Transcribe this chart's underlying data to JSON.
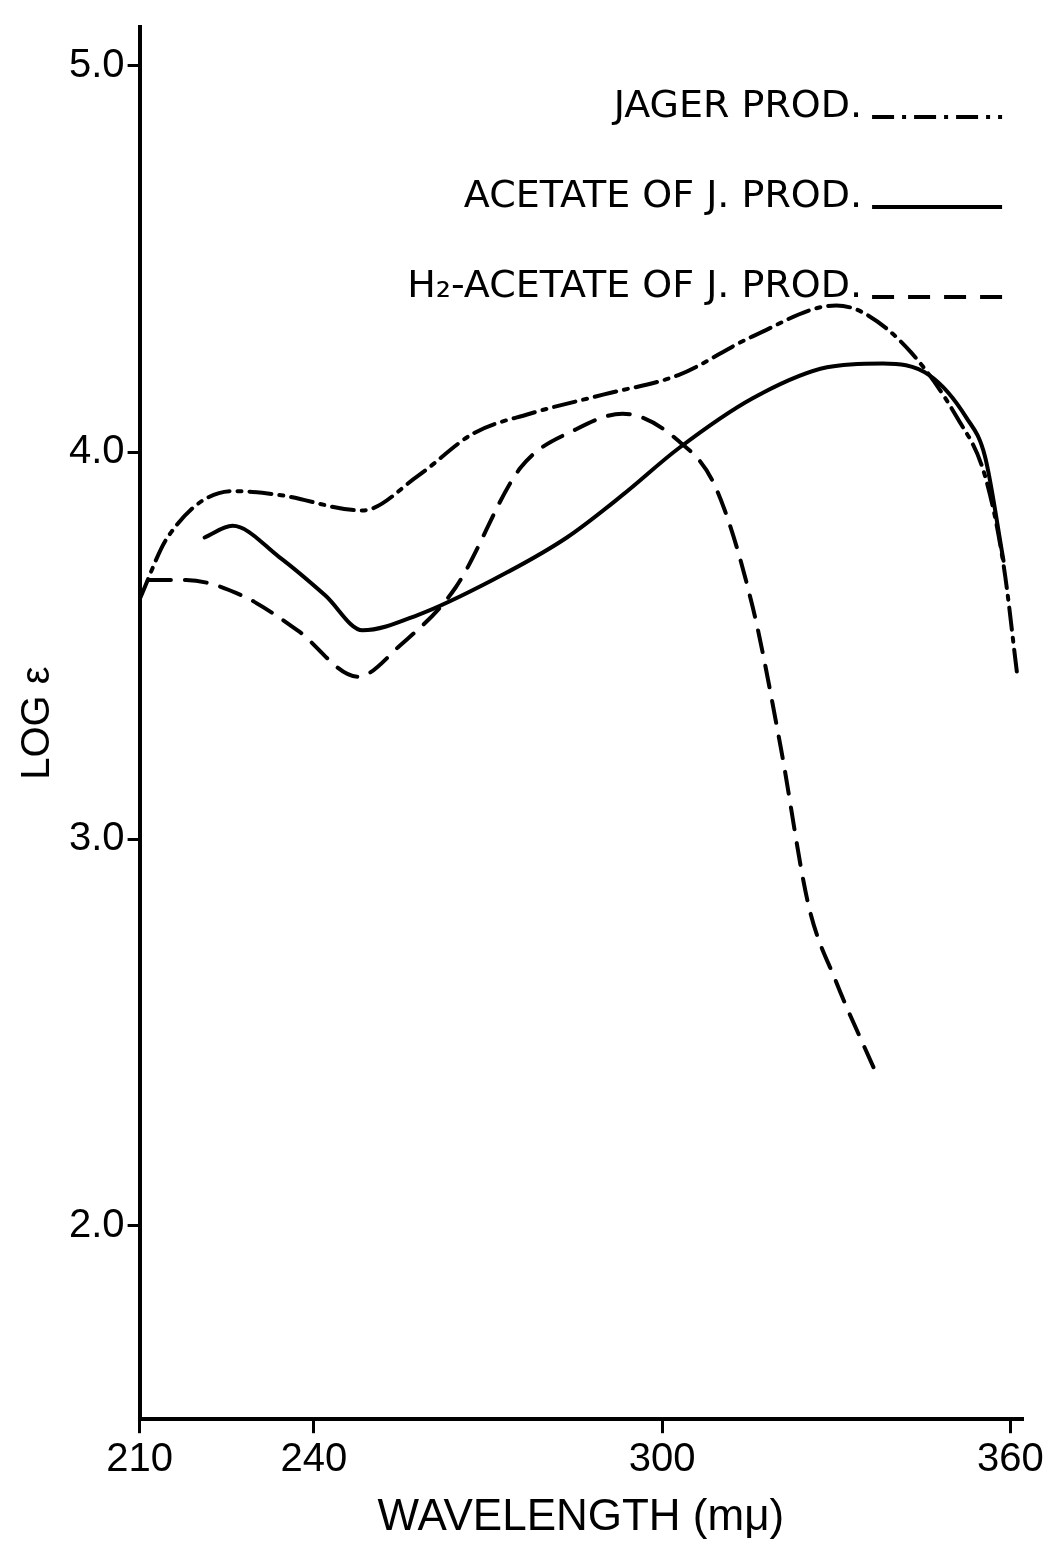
{
  "chart_data": {
    "type": "line",
    "xlabel": "WAVELENGTH (mμ)",
    "ylabel": "LOG ε",
    "xlim": [
      210,
      362
    ],
    "xticks": [
      210,
      240,
      300,
      360
    ],
    "ylim": [
      1.5,
      5.1
    ],
    "yticks": [
      {
        "value": 2,
        "label": "2.0"
      },
      {
        "value": 3,
        "label": "3.0"
      },
      {
        "value": 4,
        "label": "4.0"
      },
      {
        "value": 5,
        "label": "5.0"
      }
    ],
    "grid": false,
    "legend": "top right",
    "marker": "none",
    "series": [
      {
        "name": "JAGER PROD.",
        "color": "#000000",
        "line_style": "dashdot",
        "x": [
          210,
          214.8,
          226,
          234,
          248.4,
          258,
          267.6,
          277.2,
          290,
          302.8,
          315.6,
          330,
          334.8,
          342.8,
          350.8,
          355.6,
          358.8,
          361.2
        ],
        "values": [
          3.62,
          3.78,
          3.9,
          3.89,
          3.85,
          3.94,
          4.05,
          4.1,
          4.15,
          4.2,
          4.3,
          4.38,
          4.36,
          4.26,
          4.09,
          3.94,
          3.71,
          3.42
        ]
      },
      {
        "name": "ACETATE OF J. PROD.",
        "color": "#000000",
        "line_style": "solid",
        "x": [
          221.2,
          226,
          234,
          242,
          248.4,
          258,
          270.8,
          283.6,
          293.2,
          302.8,
          315.6,
          328.4,
          338,
          346,
          352.4,
          355.6,
          358.8
        ],
        "values": [
          3.78,
          3.81,
          3.73,
          3.63,
          3.54,
          3.58,
          3.67,
          3.78,
          3.89,
          4.01,
          4.14,
          4.22,
          4.23,
          4.2,
          4.09,
          3.99,
          3.72
        ]
      },
      {
        "name": "H₂-ACETATE OF J. PROD.",
        "color": "#000000",
        "line_style": "dashed",
        "x": [
          211.6,
          218,
          227.6,
          237.2,
          247.6,
          254.8,
          264.4,
          275.6,
          285.2,
          293.2,
          302.8,
          309.2,
          315.6,
          320.4,
          325.2,
          330,
          336.4
        ],
        "values": [
          3.67,
          3.67,
          3.63,
          3.54,
          3.42,
          3.5,
          3.65,
          3.96,
          4.06,
          4.1,
          4.03,
          3.91,
          3.6,
          3.24,
          2.83,
          2.63,
          2.41
        ]
      }
    ]
  }
}
